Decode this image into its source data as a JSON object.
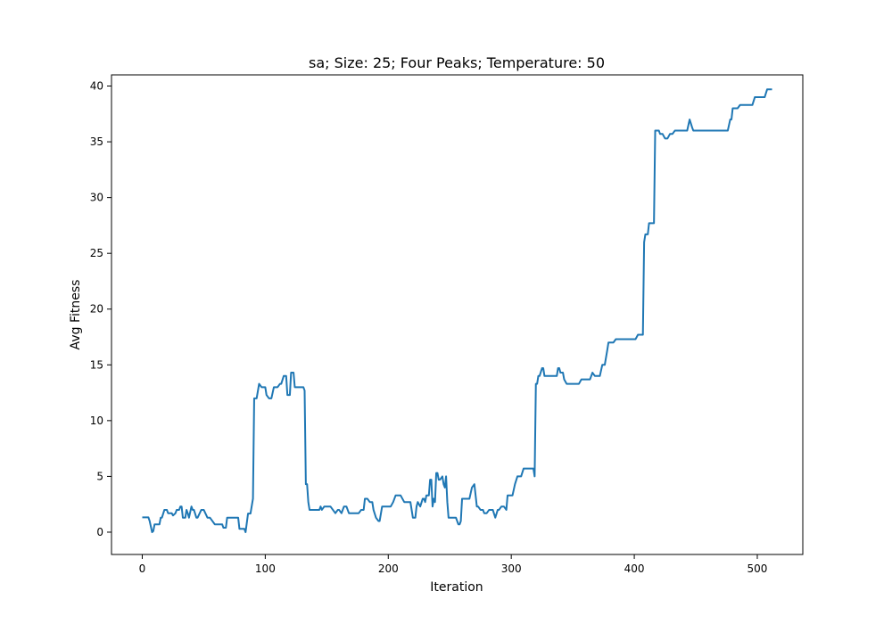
{
  "chart_data": {
    "type": "line",
    "title": "sa; Size: 25; Four Peaks; Temperature: 50",
    "xlabel": "Iteration",
    "ylabel": "Avg Fitness",
    "xlim": [
      -25,
      537
    ],
    "ylim": [
      -2,
      41
    ],
    "xticks": [
      0,
      100,
      200,
      300,
      400,
      500
    ],
    "yticks": [
      0,
      5,
      10,
      15,
      20,
      25,
      30,
      35,
      40
    ],
    "grid": false,
    "line_color": "#1f77b4",
    "series": [
      {
        "x": [
          0,
          5,
          6,
          7,
          8,
          9,
          10,
          12,
          14,
          15,
          16,
          18,
          20,
          21,
          22,
          24,
          25,
          27,
          28,
          30,
          31,
          32,
          33,
          35,
          36,
          37,
          38,
          40,
          41,
          42,
          44,
          45,
          48,
          49,
          50,
          53,
          55,
          57,
          59,
          61,
          63,
          65,
          66,
          68,
          69,
          70,
          71,
          73,
          75,
          77,
          78,
          79,
          80,
          81,
          82,
          83,
          84,
          86,
          87,
          88,
          90,
          91,
          93,
          95,
          97,
          99,
          100,
          101,
          103,
          105,
          107,
          109,
          110,
          112,
          113,
          115,
          117,
          118,
          120,
          121,
          123,
          124,
          125,
          127,
          129,
          131,
          132,
          133,
          134,
          135,
          136,
          138,
          140,
          142,
          144,
          145,
          146,
          148,
          150,
          152,
          153,
          155,
          157,
          159,
          160,
          162,
          164,
          166,
          168,
          170,
          172,
          174,
          176,
          178,
          180,
          181,
          183,
          185,
          187,
          188,
          190,
          192,
          193,
          195,
          197,
          199,
          200,
          202,
          204,
          206,
          208,
          210,
          213,
          215,
          216,
          218,
          220,
          222,
          223,
          224,
          226,
          228,
          229,
          230,
          231,
          233,
          234,
          235,
          236,
          237,
          238,
          239,
          240,
          241,
          242,
          244,
          245,
          246,
          247,
          248,
          249,
          250,
          251,
          253,
          255,
          257,
          258,
          259,
          260,
          262,
          264,
          266,
          268,
          270,
          272,
          273,
          275,
          277,
          278,
          280,
          282,
          284,
          285,
          287,
          289,
          290,
          292,
          294,
          296,
          297,
          299,
          301,
          303,
          305,
          307,
          308,
          310,
          312,
          314,
          316,
          318,
          319,
          320,
          321,
          322,
          323,
          325,
          326,
          327,
          329,
          331,
          333,
          335,
          337,
          338,
          339,
          340,
          342,
          343,
          345,
          347,
          349,
          351,
          353,
          355,
          357,
          359,
          361,
          363,
          364,
          366,
          368,
          370,
          372,
          374,
          376,
          378,
          379,
          381,
          383,
          385,
          387,
          389,
          391,
          393,
          395,
          397,
          399,
          401,
          403,
          405,
          407,
          408,
          409,
          410,
          411,
          412,
          413,
          414,
          416,
          417,
          418,
          419,
          420,
          421,
          423,
          425,
          427,
          429,
          431,
          433,
          435,
          437,
          439,
          441,
          443,
          445,
          447,
          448,
          450,
          452,
          454,
          456,
          458,
          460,
          462,
          464,
          466,
          468,
          470,
          472,
          474,
          476,
          478,
          479,
          480,
          482,
          484,
          486,
          488,
          490,
          492,
          494,
          496,
          498,
          500,
          502,
          504,
          506,
          508,
          510,
          512
        ],
        "y": [
          1.33,
          1.33,
          1.0,
          0.5,
          0.0,
          0.1,
          0.7,
          0.7,
          0.7,
          1.3,
          1.3,
          2.0,
          2.0,
          1.7,
          1.7,
          1.7,
          1.5,
          1.7,
          2.0,
          2.0,
          2.3,
          2.3,
          1.3,
          1.3,
          2.0,
          1.7,
          1.3,
          2.3,
          2.0,
          2.0,
          1.3,
          1.3,
          2.0,
          2.0,
          2.0,
          1.3,
          1.3,
          1.0,
          0.7,
          0.7,
          0.7,
          0.7,
          0.4,
          0.4,
          1.3,
          1.3,
          1.3,
          1.3,
          1.3,
          1.3,
          1.3,
          0.3,
          0.3,
          0.3,
          0.3,
          0.3,
          0.0,
          1.67,
          1.67,
          1.67,
          3.0,
          12.0,
          12.0,
          13.3,
          13.0,
          13.0,
          13.0,
          12.3,
          12.0,
          12.0,
          13.0,
          13.0,
          13.0,
          13.3,
          13.3,
          14.0,
          14.0,
          12.3,
          12.3,
          14.3,
          14.3,
          13.0,
          13.0,
          13.0,
          13.0,
          13.0,
          12.7,
          4.3,
          4.3,
          2.7,
          2.0,
          2.0,
          2.0,
          2.0,
          2.0,
          2.3,
          2.0,
          2.3,
          2.3,
          2.3,
          2.3,
          2.0,
          1.7,
          2.0,
          2.0,
          1.7,
          2.3,
          2.3,
          1.7,
          1.7,
          1.7,
          1.7,
          1.7,
          2.0,
          2.0,
          3.0,
          3.0,
          2.7,
          2.7,
          2.0,
          1.3,
          1.0,
          1.0,
          2.3,
          2.3,
          2.3,
          2.3,
          2.3,
          2.7,
          3.3,
          3.3,
          3.3,
          2.7,
          2.7,
          2.7,
          2.7,
          1.3,
          1.3,
          2.3,
          2.7,
          2.3,
          3.0,
          3.0,
          2.7,
          3.3,
          3.3,
          4.7,
          4.7,
          2.3,
          3.0,
          2.7,
          5.3,
          5.3,
          4.7,
          4.7,
          5.0,
          4.3,
          4.0,
          5.0,
          2.7,
          1.3,
          1.3,
          1.3,
          1.3,
          1.3,
          0.7,
          0.7,
          1.0,
          3.0,
          3.0,
          3.0,
          3.0,
          4.0,
          4.3,
          2.3,
          2.3,
          2.0,
          2.0,
          1.7,
          1.7,
          2.0,
          2.0,
          2.0,
          1.3,
          2.0,
          2.0,
          2.3,
          2.3,
          2.0,
          3.3,
          3.3,
          3.3,
          4.3,
          5.0,
          5.0,
          5.0,
          5.7,
          5.7,
          5.7,
          5.7,
          5.7,
          5.0,
          13.3,
          13.3,
          14.0,
          14.0,
          14.7,
          14.7,
          14.0,
          14.0,
          14.0,
          14.0,
          14.0,
          14.0,
          14.7,
          14.7,
          14.3,
          14.3,
          13.7,
          13.3,
          13.3,
          13.3,
          13.3,
          13.3,
          13.3,
          13.7,
          13.7,
          13.7,
          13.7,
          13.7,
          14.3,
          14.0,
          14.0,
          14.0,
          15.0,
          15.0,
          16.3,
          17.0,
          17.0,
          17.0,
          17.3,
          17.3,
          17.3,
          17.3,
          17.3,
          17.3,
          17.3,
          17.3,
          17.3,
          17.7,
          17.7,
          17.7,
          26.0,
          26.7,
          26.7,
          26.7,
          27.7,
          27.7,
          27.7,
          27.7,
          36.0,
          36.0,
          36.0,
          36.0,
          35.7,
          35.7,
          35.3,
          35.3,
          35.7,
          35.7,
          36.0,
          36.0,
          36.0,
          36.0,
          36.0,
          36.0,
          37.0,
          36.3,
          36.0,
          36.0,
          36.0,
          36.0,
          36.0,
          36.0,
          36.0,
          36.0,
          36.0,
          36.0,
          36.0,
          36.0,
          36.0,
          36.0,
          36.0,
          37.0,
          37.0,
          38.0,
          38.0,
          38.0,
          38.3,
          38.3,
          38.3,
          38.3,
          38.3,
          38.3,
          39.0,
          39.0,
          39.0,
          39.0,
          39.0,
          39.7,
          39.7,
          39.7
        ]
      }
    ]
  }
}
